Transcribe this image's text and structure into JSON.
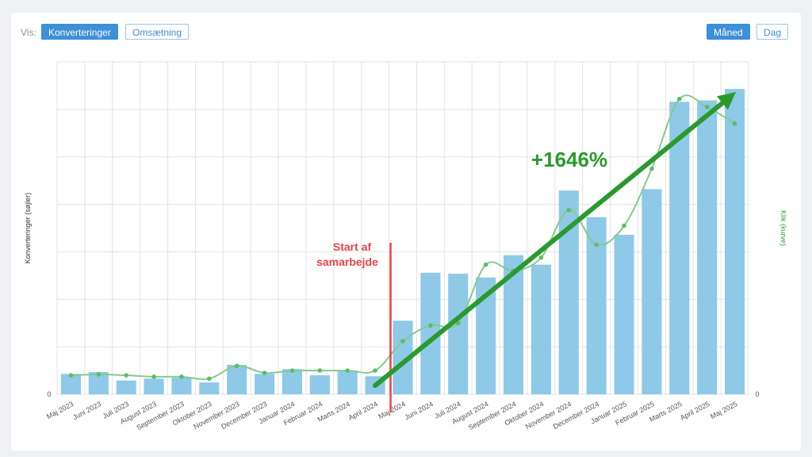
{
  "controls": {
    "vis_label": "Vis:",
    "konverteringer": "Konverteringer",
    "omsaetning": "Omsætning",
    "maaned": "Måned",
    "dag": "Dag"
  },
  "colors": {
    "bar": "#8ec9e8",
    "line": "#82cc8c",
    "point": "#5bbd67",
    "grid": "#e3e3e3",
    "start_line": "#e8434a",
    "arrow": "#2a9a2e"
  },
  "annotations": {
    "start_text_line1": "Start af",
    "start_text_line2": "samarbejde",
    "growth_text": "+1646%"
  },
  "chart_data": {
    "type": "bar",
    "title": "",
    "ylabel": "Konverteringer (søjler)",
    "y2label": "Klik (kurve)",
    "ylim": [
      0,
      7
    ],
    "y2lim": [
      0,
      7
    ],
    "ytick_labels": [
      "0"
    ],
    "y2tick_labels": [
      "0"
    ],
    "grid": true,
    "categories": [
      "Maj 2023",
      "Juni 2023",
      "Juli 2023",
      "August 2023",
      "September 2023",
      "Oktober 2023",
      "November 2023",
      "December 2023",
      "Januar 2024",
      "Februar 2024",
      "Marts 2024",
      "April 2024",
      "Maj 2024",
      "Juni 2024",
      "Juli 2024",
      "August 2024",
      "September 2024",
      "Oktober 2024",
      "November 2024",
      "December 2024",
      "Januar 2025",
      "Februar 2025",
      "Marts 2025",
      "April 2025",
      "Maj 2025"
    ],
    "series": [
      {
        "name": "Konverteringer (søjler)",
        "type": "bar",
        "values": [
          0.43,
          0.47,
          0.29,
          0.33,
          0.35,
          0.25,
          0.62,
          0.43,
          0.53,
          0.4,
          0.5,
          0.38,
          1.55,
          2.56,
          2.54,
          2.46,
          2.93,
          2.73,
          4.29,
          3.73,
          3.36,
          4.32,
          6.16,
          6.19,
          6.43
        ]
      },
      {
        "name": "Klik (kurve)",
        "type": "line",
        "values": [
          0.4,
          0.42,
          0.4,
          0.37,
          0.37,
          0.33,
          0.6,
          0.45,
          0.5,
          0.5,
          0.5,
          0.5,
          1.12,
          1.45,
          1.5,
          2.73,
          2.6,
          2.88,
          3.88,
          3.15,
          3.55,
          4.75,
          6.22,
          6.05,
          5.7
        ]
      }
    ],
    "start_marker_category": "Maj 2024",
    "growth_annotation": "+1646%"
  }
}
